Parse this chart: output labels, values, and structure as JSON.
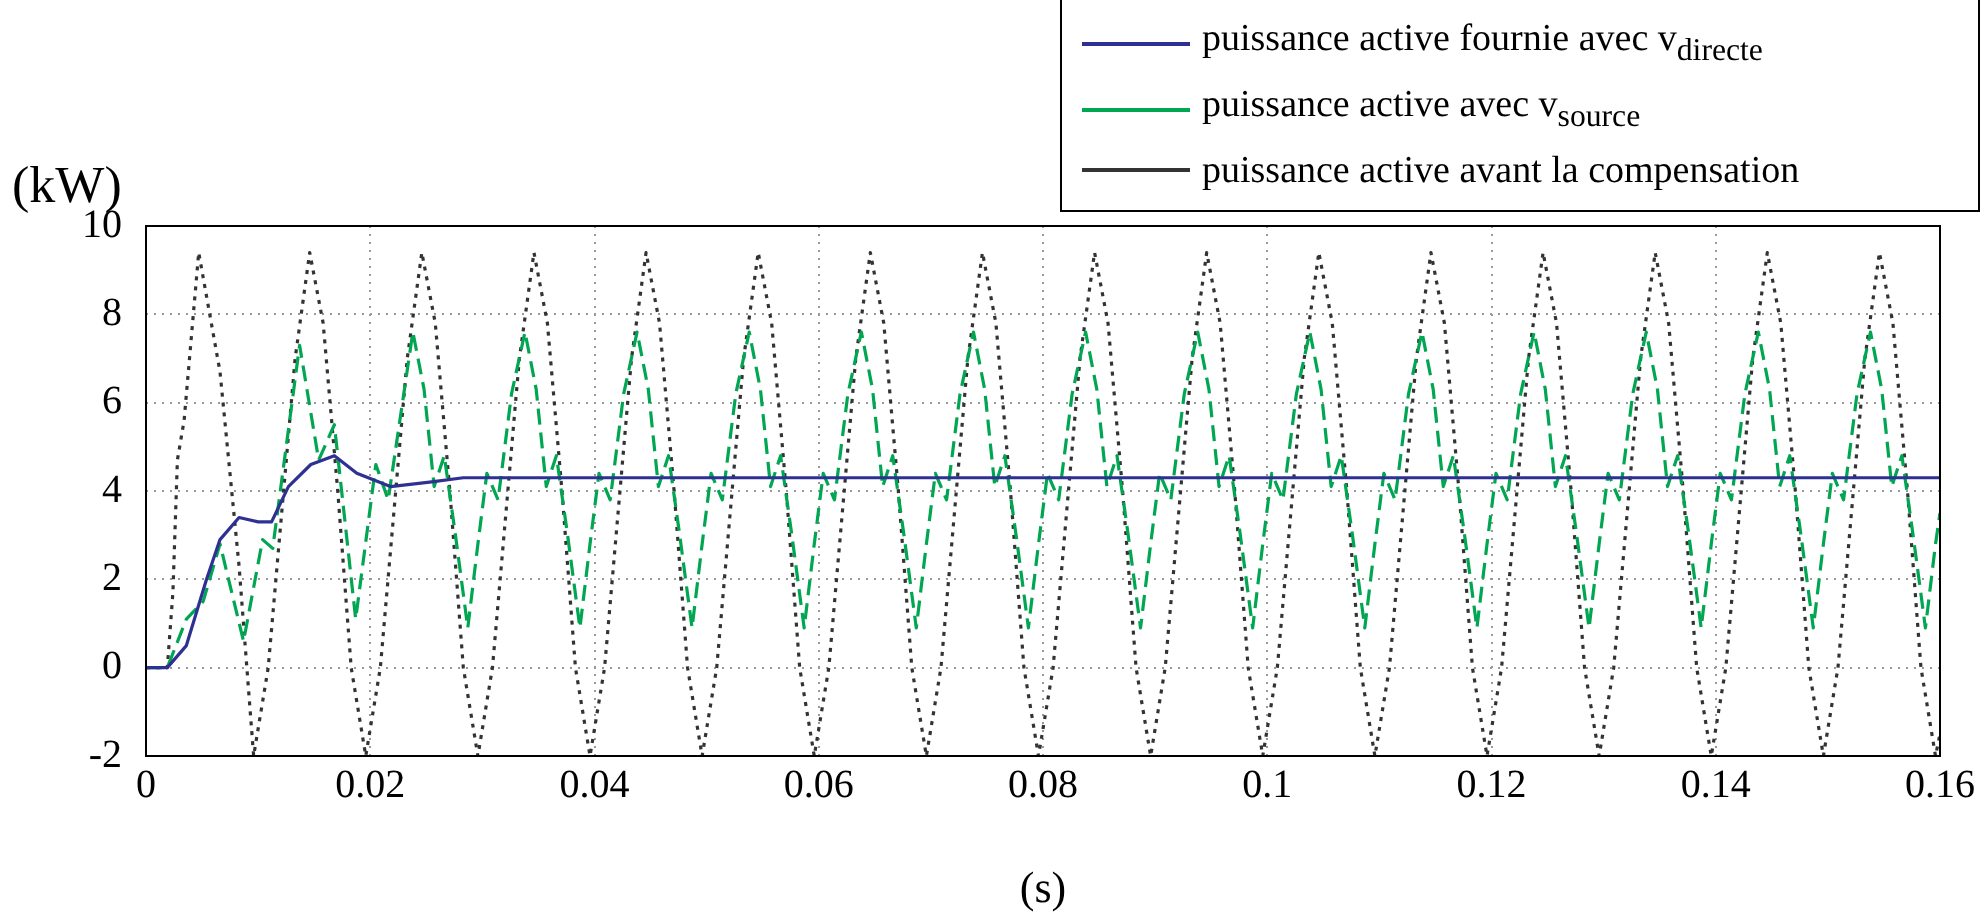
{
  "chart_data": {
    "type": "line",
    "xlabel": "(s)",
    "ylabel": "(kW)",
    "xlim": [
      0,
      0.16
    ],
    "xticks": [
      0,
      0.02,
      0.04,
      0.06,
      0.08,
      0.1,
      0.12,
      0.14,
      0.16
    ],
    "ylim": [
      -2,
      10
    ],
    "yticks": [
      -2,
      0,
      2,
      4,
      6,
      8,
      10
    ],
    "grid": true,
    "legend": "top right",
    "marker": "none",
    "series": [
      {
        "name": "puissance active fournie avec v$_{directe}$",
        "color": "#2e3192",
        "line_style": "solid",
        "x": [
          0,
          0.0019,
          0.0036,
          0.0054,
          0.0066,
          0.0083,
          0.01,
          0.0112,
          0.0127,
          0.0147,
          0.0168,
          0.0188,
          0.0218,
          0.0253,
          0.0283,
          0.16
        ],
        "values": [
          0,
          0,
          0.5,
          2,
          2.9,
          3.4,
          3.3,
          3.3,
          4.1,
          4.6,
          4.8,
          4.4,
          4.1,
          4.2,
          4.3,
          4.3
        ]
      },
      {
        "name": "puissance active avec v$_{source}$",
        "color": "#00a651",
        "line_style": "dashed",
        "x": [
          0,
          0.0019,
          0.0036,
          0.0051,
          0.0066,
          0.0087,
          0.0104,
          0.0113,
          0.0137,
          0.0154,
          0.0168,
          0.0187,
          0.0205,
          0.0216,
          0.0238,
          0.0248,
          0.0257,
          0.0266,
          0.0276,
          0.0287,
          0.0296,
          0.0304,
          0.0314,
          0.0326,
          0.0338,
          0.0348,
          0.0357,
          0.0366,
          0.0376,
          0.0387,
          0.0396,
          0.0404,
          0.0414,
          0.0426,
          0.0438,
          0.0448,
          0.0457,
          0.0466,
          0.0476,
          0.0487,
          0.0496,
          0.0504,
          0.0514,
          0.0526,
          0.0538,
          0.0548,
          0.0557,
          0.0566,
          0.0576,
          0.0587,
          0.0596,
          0.0604,
          0.0614,
          0.0626,
          0.0638,
          0.0648,
          0.0657,
          0.0666,
          0.0676,
          0.0687,
          0.0696,
          0.0704,
          0.0714,
          0.0726,
          0.0738,
          0.0748,
          0.0757,
          0.0766,
          0.0776,
          0.0787,
          0.0796,
          0.0804,
          0.0814,
          0.0826,
          0.0838,
          0.0848,
          0.0857,
          0.0866,
          0.0876,
          0.0887,
          0.0896,
          0.0904,
          0.0914,
          0.0926,
          0.0938,
          0.0948,
          0.0957,
          0.0966,
          0.0976,
          0.0987,
          0.0996,
          0.1004,
          0.1014,
          0.1026,
          0.1038,
          0.1048,
          0.1057,
          0.1066,
          0.1076,
          0.1087,
          0.1096,
          0.1104,
          0.1114,
          0.1126,
          0.1138,
          0.1148,
          0.1157,
          0.1166,
          0.1176,
          0.1187,
          0.1196,
          0.1204,
          0.1214,
          0.1226,
          0.1238,
          0.1248,
          0.1257,
          0.1266,
          0.1276,
          0.1287,
          0.1296,
          0.1304,
          0.1314,
          0.1326,
          0.1338,
          0.1348,
          0.1357,
          0.1366,
          0.1376,
          0.1387,
          0.1396,
          0.1404,
          0.1414,
          0.1426,
          0.1438,
          0.1448,
          0.1457,
          0.1466,
          0.1476,
          0.1487,
          0.1496,
          0.1504,
          0.1514,
          0.1526,
          0.1538,
          0.1548,
          0.1557,
          0.1566,
          0.1576,
          0.1587,
          0.1596,
          0.16
        ],
        "values": [
          0,
          0,
          1.1,
          1.5,
          2.8,
          0.6,
          2.9,
          2.7,
          7.3,
          4.7,
          5.5,
          1.1,
          4.6,
          3.8,
          7.6,
          6.3,
          4.1,
          4.8,
          3,
          0.9,
          2.8,
          4.4,
          3.8,
          6.2,
          7.6,
          6.3,
          4.1,
          4.8,
          3,
          0.9,
          2.8,
          4.4,
          3.8,
          6.2,
          7.6,
          6.3,
          4.1,
          4.8,
          3,
          0.9,
          2.8,
          4.4,
          3.8,
          6.2,
          7.6,
          6.3,
          4.1,
          4.8,
          3,
          0.9,
          2.8,
          4.4,
          3.8,
          6.2,
          7.6,
          6.3,
          4.1,
          4.8,
          3,
          0.9,
          2.8,
          4.4,
          3.8,
          6.2,
          7.6,
          6.3,
          4.1,
          4.8,
          3,
          0.9,
          2.8,
          4.4,
          3.8,
          6.2,
          7.6,
          6.3,
          4.1,
          4.8,
          3,
          0.9,
          2.8,
          4.4,
          3.8,
          6.2,
          7.6,
          6.3,
          4.1,
          4.8,
          3,
          0.9,
          2.8,
          4.4,
          3.8,
          6.2,
          7.6,
          6.3,
          4.1,
          4.8,
          3,
          0.9,
          2.8,
          4.4,
          3.8,
          6.2,
          7.6,
          6.3,
          4.1,
          4.8,
          3,
          0.9,
          2.8,
          4.4,
          3.8,
          6.2,
          7.6,
          6.3,
          4.1,
          4.8,
          3,
          0.9,
          2.8,
          4.4,
          3.8,
          6.2,
          7.6,
          6.3,
          4.1,
          4.8,
          3,
          0.9,
          2.8,
          4.4,
          3.8,
          6.2,
          7.6,
          6.3,
          4.1,
          4.8,
          3,
          0.9,
          2.8,
          4.4,
          3.8,
          6.2,
          7.6,
          6.3,
          4.1,
          4.8,
          3,
          0.9,
          2.8,
          3.5
        ]
      },
      {
        "name": "puissance active avant la compensation",
        "color": "#333333",
        "line_style": "dotted",
        "x": [
          0,
          0.0019,
          0.0024,
          0.0028,
          0.0034,
          0.0047,
          0.0066,
          0.0083,
          0.0096,
          0.0109,
          0.0121,
          0.0133,
          0.0146,
          0.0158,
          0.0171,
          0.0183,
          0.0196,
          0.0209,
          0.0221,
          0.0233,
          0.0246,
          0.0258,
          0.0271,
          0.0283,
          0.0296,
          0.0309,
          0.0321,
          0.0333,
          0.0346,
          0.0358,
          0.0371,
          0.0383,
          0.0396,
          0.0409,
          0.0421,
          0.0433,
          0.0446,
          0.0458,
          0.0471,
          0.0483,
          0.0496,
          0.0509,
          0.0521,
          0.0533,
          0.0546,
          0.0558,
          0.0571,
          0.0583,
          0.0596,
          0.0609,
          0.0621,
          0.0633,
          0.0646,
          0.0658,
          0.0671,
          0.0683,
          0.0696,
          0.0709,
          0.0721,
          0.0733,
          0.0746,
          0.0758,
          0.0771,
          0.0783,
          0.0796,
          0.0809,
          0.0821,
          0.0833,
          0.0846,
          0.0858,
          0.0871,
          0.0883,
          0.0896,
          0.0909,
          0.0921,
          0.0933,
          0.0946,
          0.0958,
          0.0971,
          0.0983,
          0.0996,
          0.1009,
          0.1021,
          0.1033,
          0.1046,
          0.1058,
          0.1071,
          0.1083,
          0.1096,
          0.1109,
          0.1121,
          0.1133,
          0.1146,
          0.1158,
          0.1171,
          0.1183,
          0.1196,
          0.1209,
          0.1221,
          0.1233,
          0.1246,
          0.1258,
          0.1271,
          0.1283,
          0.1296,
          0.1309,
          0.1321,
          0.1333,
          0.1346,
          0.1358,
          0.1371,
          0.1383,
          0.1396,
          0.1409,
          0.1421,
          0.1433,
          0.1446,
          0.1458,
          0.1471,
          0.1483,
          0.1496,
          0.1509,
          0.1521,
          0.1533,
          0.1546,
          0.1558,
          0.1571,
          0.1583,
          0.1596,
          0.16
        ],
        "values": [
          0,
          0,
          1.7,
          4.7,
          5.6,
          9.4,
          6.7,
          2.3,
          -2,
          0,
          3.5,
          7,
          9.4,
          7.8,
          4,
          0,
          -2,
          0,
          3.5,
          7,
          9.4,
          7.8,
          4,
          0,
          -2,
          0,
          3.5,
          7,
          9.4,
          7.8,
          4,
          0,
          -2,
          0,
          3.5,
          7,
          9.4,
          7.8,
          4,
          0,
          -2,
          0,
          3.5,
          7,
          9.4,
          7.8,
          4,
          0,
          -2,
          0,
          3.5,
          7,
          9.4,
          7.8,
          4,
          0,
          -2,
          0,
          3.5,
          7,
          9.4,
          7.8,
          4,
          0,
          -2,
          0,
          3.5,
          7,
          9.4,
          7.8,
          4,
          0,
          -2,
          0,
          3.5,
          7,
          9.4,
          7.8,
          4,
          0,
          -2,
          0,
          3.5,
          7,
          9.4,
          7.8,
          4,
          0,
          -2,
          0,
          3.5,
          7,
          9.4,
          7.8,
          4,
          0,
          -2,
          0,
          3.5,
          7,
          9.4,
          7.8,
          4,
          0,
          -2,
          0,
          3.5,
          7,
          9.4,
          7.8,
          4,
          0,
          -2,
          0,
          3.5,
          7,
          9.4,
          7.8,
          4,
          0,
          -2,
          0,
          3.5,
          7,
          9.4,
          7.8,
          4,
          0,
          -2,
          -1.5
        ]
      }
    ]
  }
}
